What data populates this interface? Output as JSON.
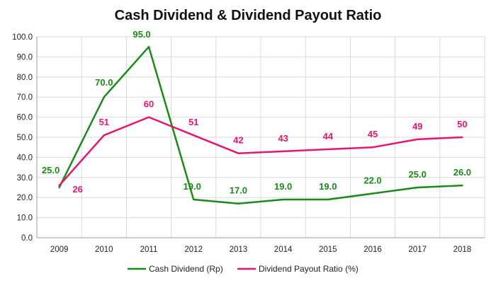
{
  "chart_data": {
    "type": "line",
    "title": "Cash Dividend & Dividend Payout Ratio",
    "xlabel": "",
    "ylabel": "",
    "ylim": [
      0,
      100
    ],
    "yticks": [
      "0.0",
      "10.0",
      "20.0",
      "30.0",
      "40.0",
      "50.0",
      "60.0",
      "70.0",
      "80.0",
      "90.0",
      "100.0"
    ],
    "categories": [
      "2009",
      "2010",
      "2011",
      "2012",
      "2013",
      "2014",
      "2015",
      "2016",
      "2017",
      "2018"
    ],
    "grid": true,
    "legend_position": "bottom",
    "series": [
      {
        "name": "Cash Dividend (Rp)",
        "color": "#1a8a1a",
        "values": [
          25.0,
          70.0,
          95.0,
          19.0,
          17.0,
          19.0,
          19.0,
          22.0,
          25.0,
          26.0
        ],
        "labels": [
          "25.0",
          "70.0",
          "95.0",
          "19.0",
          "17.0",
          "19.0",
          "19.0",
          "22.0",
          "25.0",
          "26.0"
        ]
      },
      {
        "name": "Dividend Payout Ratio (%)",
        "color": "#e6166e",
        "values": [
          26,
          51,
          60,
          51,
          42,
          43,
          44,
          45,
          49,
          50
        ],
        "labels": [
          "26",
          "51",
          "60",
          "51",
          "42",
          "43",
          "44",
          "45",
          "49",
          "50"
        ]
      }
    ]
  }
}
